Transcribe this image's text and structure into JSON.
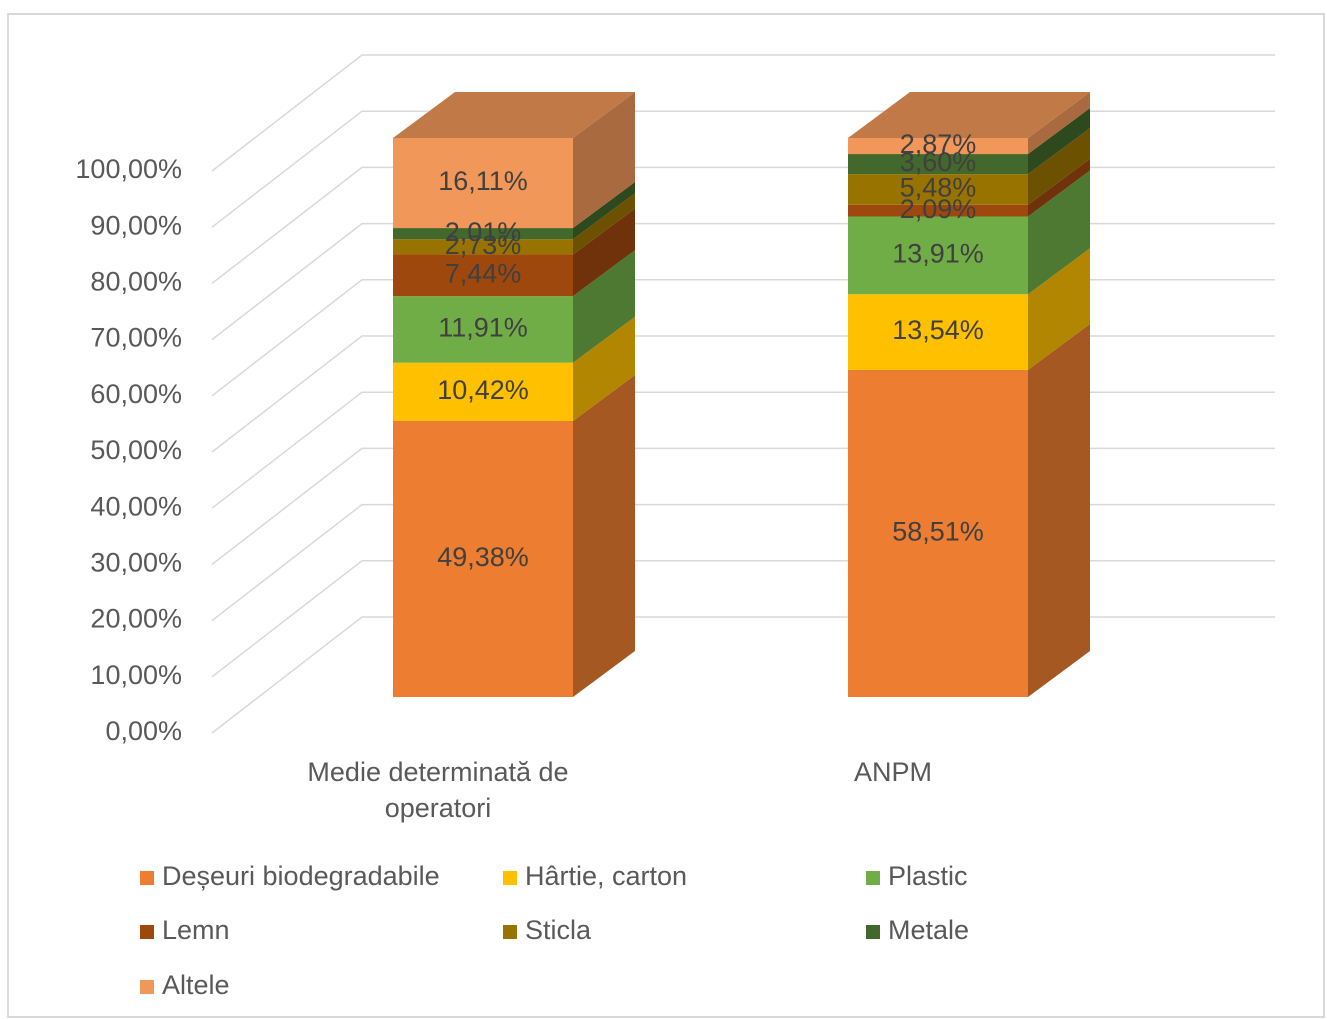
{
  "chart_data": {
    "type": "bar3d_stacked",
    "categories": [
      "Medie determinată de operatori",
      "ANPM"
    ],
    "series": [
      {
        "name": "Deșeuri biodegradabile",
        "color": "#ed7d31",
        "values": [
          49.38,
          58.51
        ],
        "value_labels": [
          "49,38%",
          "58,51%"
        ]
      },
      {
        "name": "Hârtie, carton",
        "color": "#ffc000",
        "values": [
          10.42,
          13.54
        ],
        "value_labels": [
          "10,42%",
          "13,54%"
        ]
      },
      {
        "name": "Plastic",
        "color": "#70ad47",
        "values": [
          11.91,
          13.91
        ],
        "value_labels": [
          "11,91%",
          "13,91%"
        ]
      },
      {
        "name": "Lemn",
        "color": "#9e480e",
        "values": [
          7.44,
          2.09
        ],
        "value_labels": [
          "7,44%",
          "2,09%"
        ]
      },
      {
        "name": "Sticla",
        "color": "#997300",
        "values": [
          2.73,
          5.48
        ],
        "value_labels": [
          "2,73%",
          "5,48%"
        ]
      },
      {
        "name": "Metale",
        "color": "#43682b",
        "values": [
          2.01,
          3.6
        ],
        "value_labels": [
          "2,01%",
          "3,60%"
        ]
      },
      {
        "name": "Altele",
        "color": "#f1975a",
        "values": [
          16.11,
          2.87
        ],
        "value_labels": [
          "16,11%",
          "2,87%"
        ]
      }
    ],
    "ylim": [
      0,
      100
    ],
    "yticks": [
      {
        "value": 0,
        "label": "0,00%"
      },
      {
        "value": 10,
        "label": "10,00%"
      },
      {
        "value": 20,
        "label": "20,00%"
      },
      {
        "value": 30,
        "label": "30,00%"
      },
      {
        "value": 40,
        "label": "40,00%"
      },
      {
        "value": 50,
        "label": "50,00%"
      },
      {
        "value": 60,
        "label": "60,00%"
      },
      {
        "value": 70,
        "label": "70,00%"
      },
      {
        "value": 80,
        "label": "80,00%"
      },
      {
        "value": 90,
        "label": "90,00%"
      },
      {
        "value": 100,
        "label": "100,00%"
      }
    ],
    "grid": true,
    "legend": "bottom"
  }
}
